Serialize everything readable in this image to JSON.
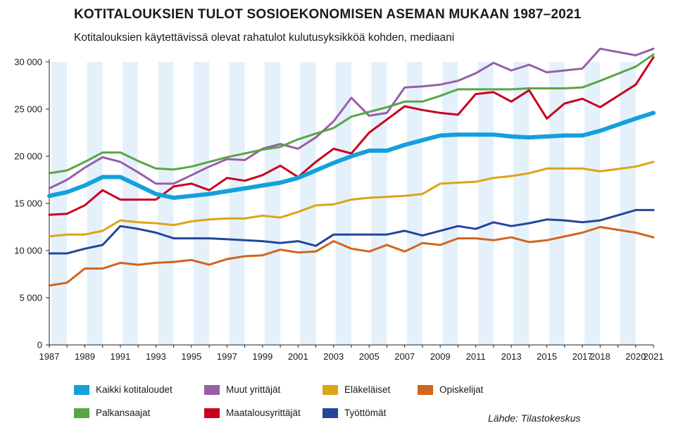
{
  "title": "KOTITALOUKSIEN TULOT SOSIOEKONOMISEN ASEMAN MUKAAN 1987–2021",
  "subtitle": "Kotitalouksien käytettävissä olevat rahatulot kulutusyksikköä kohden, mediaani",
  "source": "Lähde: Tilastokeskus",
  "chart_data": {
    "type": "line",
    "title": "KOTITALOUKSIEN TULOT SOSIOEKONOMISEN ASEMAN MUKAAN 1987–2021",
    "subtitle": "Kotitalouksien käytettävissä olevat rahatulot kulutusyksikköä kohden, mediaani",
    "xlabel": "",
    "ylabel": "",
    "xlim": [
      1987,
      2021
    ],
    "ylim": [
      0,
      30000
    ],
    "yticks": [
      0,
      5000,
      10000,
      15000,
      20000,
      25000,
      30000
    ],
    "ytick_labels": [
      "0",
      "5 000",
      "10 000",
      "15 000",
      "20 000",
      "25 000",
      "30 000"
    ],
    "xticks": [
      1987,
      1989,
      1991,
      1993,
      1995,
      1997,
      1999,
      2001,
      2003,
      2005,
      2007,
      2009,
      2011,
      2013,
      2015,
      2017,
      2018,
      2020,
      2021
    ],
    "xtick_labels": [
      "1987",
      "1989",
      "1991",
      "1993",
      "1995",
      "1997",
      "1999",
      "2001",
      "2003",
      "2005",
      "2007",
      "2009",
      "2011",
      "2013",
      "2015",
      "2017",
      "2018",
      "2020",
      "2021"
    ],
    "grid": "alternating vertical bands",
    "legend": "bottom",
    "series": [
      {
        "name": "Kaikki kotitaloudet",
        "color": "#14a0dc",
        "width": 6,
        "x": [
          1987,
          1988,
          1989,
          1990,
          1991,
          1992,
          1993,
          1994,
          1995,
          1996,
          1997,
          1998,
          1999,
          2000,
          2001,
          2002,
          2003,
          2004,
          2005,
          2006,
          2007,
          2008,
          2009,
          2010,
          2011,
          2012,
          2013,
          2014,
          2015,
          2016,
          2017,
          2018,
          2020,
          2021
        ],
        "y": [
          15800,
          16200,
          16900,
          17800,
          17800,
          16900,
          16000,
          15600,
          15800,
          16000,
          16300,
          16600,
          16900,
          17200,
          17700,
          18500,
          19300,
          20000,
          20600,
          20600,
          21200,
          21700,
          22200,
          22300,
          22300,
          22300,
          22100,
          22000,
          22100,
          22200,
          22200,
          22700,
          24000,
          24600
        ]
      },
      {
        "name": "Palkansaajat",
        "color": "#5aa546",
        "width": 3,
        "x": [
          1987,
          1988,
          1989,
          1990,
          1991,
          1992,
          1993,
          1994,
          1995,
          1996,
          1997,
          1998,
          1999,
          2000,
          2001,
          2002,
          2003,
          2004,
          2005,
          2006,
          2007,
          2008,
          2009,
          2010,
          2011,
          2012,
          2013,
          2014,
          2015,
          2016,
          2017,
          2018,
          2020,
          2021
        ],
        "y": [
          18200,
          18500,
          19400,
          20400,
          20400,
          19500,
          18700,
          18600,
          18900,
          19400,
          19900,
          20300,
          20700,
          21000,
          21800,
          22400,
          23000,
          24200,
          24700,
          25200,
          25800,
          25800,
          26400,
          27100,
          27100,
          27100,
          27100,
          27200,
          27200,
          27200,
          27300,
          28000,
          29500,
          30800
        ]
      },
      {
        "name": "Muut yrittäjät",
        "color": "#9a5da8",
        "width": 3,
        "x": [
          1987,
          1988,
          1989,
          1990,
          1991,
          1992,
          1993,
          1994,
          1995,
          1996,
          1997,
          1998,
          1999,
          2000,
          2001,
          2002,
          2003,
          2004,
          2005,
          2006,
          2007,
          2008,
          2009,
          2010,
          2011,
          2012,
          2013,
          2014,
          2015,
          2016,
          2017,
          2018,
          2020,
          2021
        ],
        "y": [
          16600,
          17500,
          18800,
          19900,
          19400,
          18300,
          17100,
          17100,
          18000,
          18900,
          19700,
          19600,
          20800,
          21300,
          20800,
          22000,
          23700,
          26200,
          24300,
          24600,
          27300,
          27400,
          27600,
          28000,
          28800,
          29900,
          29100,
          29700,
          28900,
          29100,
          29300,
          31400,
          30700,
          31400
        ]
      },
      {
        "name": "Maatalousyrittäjät",
        "color": "#c8001e",
        "width": 3,
        "x": [
          1987,
          1988,
          1989,
          1990,
          1991,
          1992,
          1993,
          1994,
          1995,
          1996,
          1997,
          1998,
          1999,
          2000,
          2001,
          2002,
          2003,
          2004,
          2005,
          2006,
          2007,
          2008,
          2009,
          2010,
          2011,
          2012,
          2013,
          2014,
          2015,
          2016,
          2017,
          2018,
          2020,
          2021
        ],
        "y": [
          13800,
          13900,
          14800,
          16400,
          15400,
          15400,
          15400,
          16800,
          17100,
          16400,
          17700,
          17400,
          18000,
          19000,
          17800,
          19400,
          20800,
          20300,
          22500,
          23900,
          25300,
          24900,
          24600,
          24400,
          26600,
          26800,
          25800,
          27000,
          24000,
          25600,
          26100,
          25200,
          27600,
          30500
        ]
      },
      {
        "name": "Eläkeläiset",
        "color": "#dca515",
        "width": 3,
        "x": [
          1987,
          1988,
          1989,
          1990,
          1991,
          1992,
          1993,
          1994,
          1995,
          1996,
          1997,
          1998,
          1999,
          2000,
          2001,
          2002,
          2003,
          2004,
          2005,
          2006,
          2007,
          2008,
          2009,
          2010,
          2011,
          2012,
          2013,
          2014,
          2015,
          2016,
          2017,
          2018,
          2020,
          2021
        ],
        "y": [
          11500,
          11700,
          11700,
          12100,
          13200,
          13000,
          12900,
          12700,
          13100,
          13300,
          13400,
          13400,
          13700,
          13500,
          14100,
          14800,
          14900,
          15400,
          15600,
          15700,
          15800,
          16000,
          17100,
          17200,
          17300,
          17700,
          17900,
          18200,
          18700,
          18700,
          18700,
          18400,
          18900,
          19400
        ]
      },
      {
        "name": "Työttömät",
        "color": "#23469b",
        "width": 3,
        "x": [
          1987,
          1988,
          1989,
          1990,
          1991,
          1992,
          1993,
          1994,
          1995,
          1996,
          1997,
          1998,
          1999,
          2000,
          2001,
          2002,
          2003,
          2004,
          2005,
          2006,
          2007,
          2008,
          2009,
          2010,
          2011,
          2012,
          2013,
          2014,
          2015,
          2016,
          2017,
          2018,
          2020,
          2021
        ],
        "y": [
          9700,
          9700,
          10200,
          10600,
          12600,
          12300,
          11900,
          11300,
          11300,
          11300,
          11200,
          11100,
          11000,
          10800,
          11000,
          10500,
          11700,
          11700,
          11700,
          11700,
          12100,
          11600,
          12100,
          12600,
          12300,
          13000,
          12600,
          12900,
          13300,
          13200,
          13000,
          13200,
          14300,
          14300
        ]
      },
      {
        "name": "Opiskelijat",
        "color": "#d2641e",
        "width": 3,
        "x": [
          1987,
          1988,
          1989,
          1990,
          1991,
          1992,
          1993,
          1994,
          1995,
          1996,
          1997,
          1998,
          1999,
          2000,
          2001,
          2002,
          2003,
          2004,
          2005,
          2006,
          2007,
          2008,
          2009,
          2010,
          2011,
          2012,
          2013,
          2014,
          2015,
          2016,
          2017,
          2018,
          2020,
          2021
        ],
        "y": [
          6300,
          6600,
          8100,
          8100,
          8700,
          8500,
          8700,
          8800,
          9000,
          8500,
          9100,
          9400,
          9500,
          10100,
          9800,
          9900,
          11000,
          10200,
          9900,
          10600,
          9900,
          10800,
          10600,
          11300,
          11300,
          11100,
          11400,
          10900,
          11100,
          11500,
          11900,
          12500,
          11900,
          11400
        ]
      }
    ],
    "legend_layout": [
      [
        "Kaikki kotitaloudet",
        "Muut yrittäjät",
        "Eläkeläiset",
        "Opiskelijat"
      ],
      [
        "Palkansaajat",
        "Maatalousyrittäjät",
        "Työttömät"
      ]
    ]
  }
}
